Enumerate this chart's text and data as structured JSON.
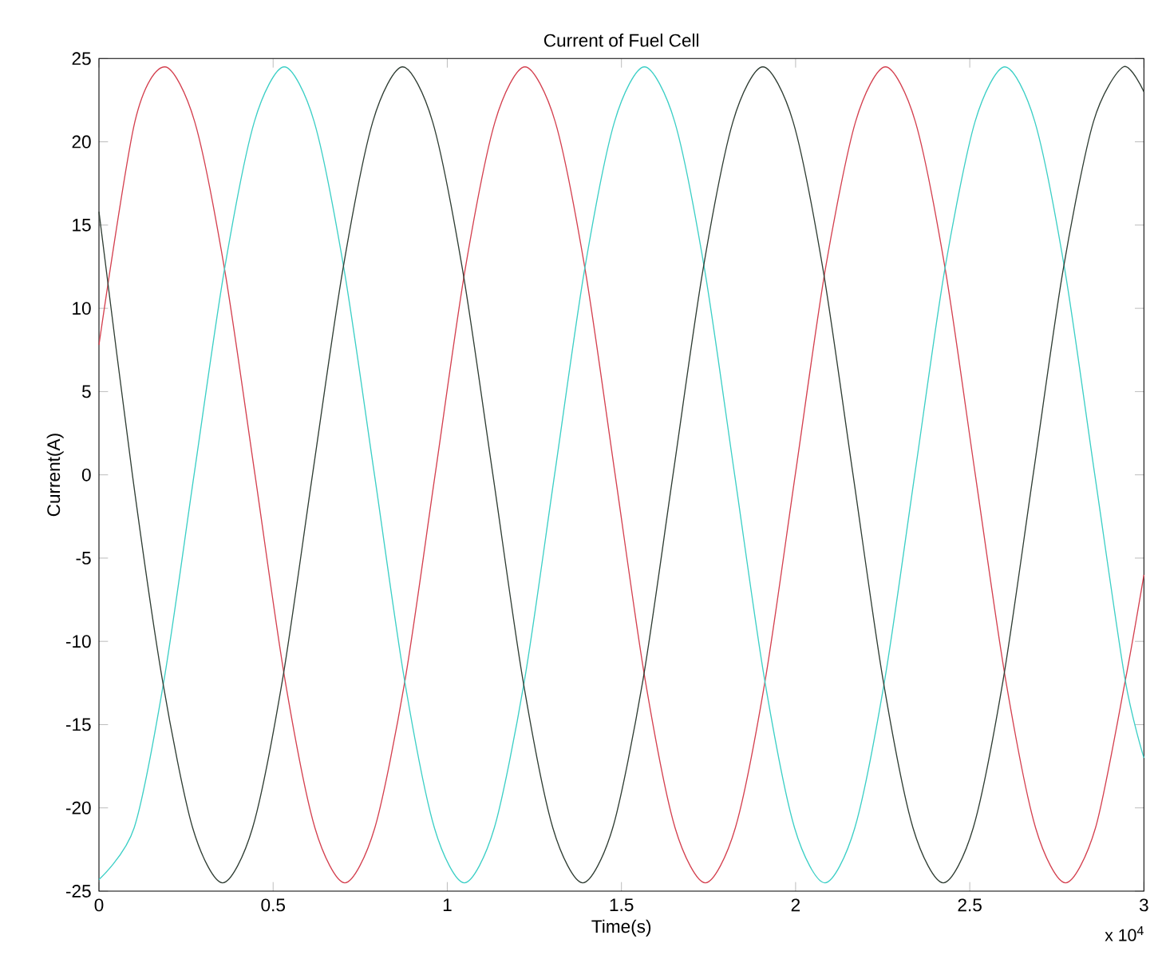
{
  "chart_data": {
    "type": "line",
    "title": "Current of Fuel Cell",
    "xlabel": "Time(s)",
    "ylabel": "Current(A)",
    "annotations": [
      "x 10$^{4}$"
    ],
    "xlim": [
      0,
      3
    ],
    "xticks": [
      0,
      0.5,
      1,
      1.5,
      2,
      2.5,
      3
    ],
    "ylim": [
      -25,
      25
    ],
    "yticks": [
      -25,
      -20,
      -15,
      -10,
      -5,
      0,
      5,
      10,
      15,
      20,
      25
    ],
    "grid": false,
    "marker": "none",
    "line_style": "solid",
    "series": [
      {
        "color": "#d4404f",
        "x": [
          0,
          0.103,
          0.189,
          0.275,
          0.361,
          0.448,
          0.534,
          0.62,
          0.706,
          0.792,
          0.879,
          0.965,
          1.051,
          1.137,
          1.223,
          1.31,
          1.396,
          1.482,
          1.568,
          1.654,
          1.741,
          1.827,
          1.913,
          1.999,
          2.085,
          2.172,
          2.258,
          2.344,
          2.43,
          2.516,
          2.603,
          2.689,
          2.775,
          2.861,
          2.947,
          3
        ],
        "values": [
          7.8,
          21.2,
          24.5,
          21.2,
          12.3,
          0,
          -12.3,
          -21.2,
          -24.5,
          -21.2,
          -12.3,
          0,
          12.3,
          21.2,
          24.5,
          21.2,
          12.3,
          0,
          -12.3,
          -21.2,
          -24.5,
          -21.2,
          -12.3,
          0,
          12.3,
          21.2,
          24.5,
          21.2,
          12.3,
          0,
          -12.3,
          -21.2,
          -24.5,
          -21.2,
          -12.3,
          -6
        ]
      },
      {
        "color": "#3ccfc6",
        "x": [
          0,
          0.101,
          0.187,
          0.273,
          0.36,
          0.446,
          0.532,
          0.618,
          0.704,
          0.791,
          0.877,
          0.963,
          1.049,
          1.135,
          1.222,
          1.308,
          1.394,
          1.48,
          1.566,
          1.653,
          1.739,
          1.825,
          1.911,
          1.997,
          2.084,
          2.17,
          2.256,
          2.342,
          2.428,
          2.515,
          2.601,
          2.687,
          2.773,
          2.859,
          2.946,
          3
        ],
        "values": [
          -24.3,
          -21.2,
          -12.3,
          0,
          12.3,
          21.2,
          24.5,
          21.2,
          12.3,
          0,
          -12.3,
          -21.2,
          -24.5,
          -21.2,
          -12.3,
          0,
          12.3,
          21.2,
          24.5,
          21.2,
          12.3,
          0,
          -12.3,
          -21.2,
          -24.5,
          -21.2,
          -12.3,
          0,
          12.3,
          21.2,
          24.5,
          21.2,
          12.3,
          0,
          -12.3,
          -17
        ]
      },
      {
        "color": "#2f3d33",
        "x": [
          0,
          0.096,
          0.182,
          0.269,
          0.355,
          0.441,
          0.527,
          0.613,
          0.7,
          0.786,
          0.872,
          0.958,
          1.044,
          1.131,
          1.217,
          1.303,
          1.389,
          1.475,
          1.562,
          1.648,
          1.734,
          1.82,
          1.906,
          1.993,
          2.079,
          2.165,
          2.251,
          2.337,
          2.424,
          2.51,
          2.596,
          2.682,
          2.768,
          2.855,
          2.941,
          3
        ],
        "values": [
          15.8,
          0,
          -12.3,
          -21.2,
          -24.5,
          -21.2,
          -12.3,
          0,
          12.3,
          21.2,
          24.5,
          21.2,
          12.3,
          0,
          -12.3,
          -21.2,
          -24.5,
          -21.2,
          -12.3,
          0,
          12.3,
          21.2,
          24.5,
          21.2,
          12.3,
          0,
          -12.3,
          -21.2,
          -24.5,
          -21.2,
          -12.3,
          0,
          12.3,
          21.2,
          24.5,
          23
        ]
      }
    ]
  }
}
